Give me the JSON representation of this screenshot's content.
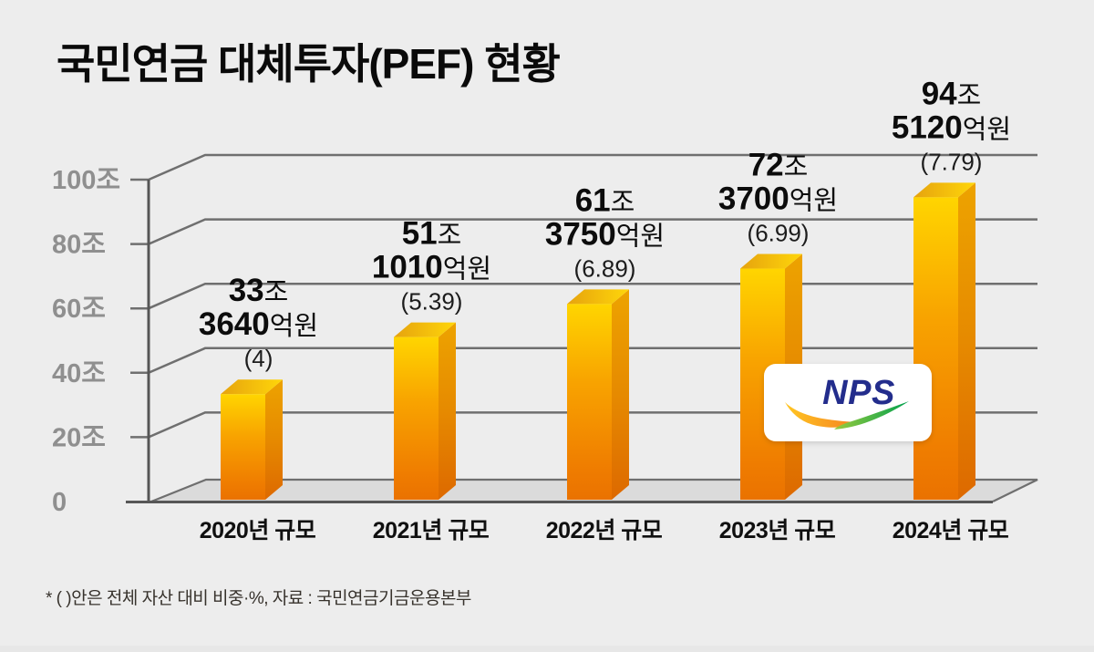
{
  "page": {
    "background": "#EDEDED"
  },
  "title": "국민연금 대체투자(PEF) 현황",
  "footnote": "* (  )안은 전체 자산 대비 비중·%, 자료 : 국민연금기금운용본부",
  "logo": {
    "text": "NPS",
    "navy": "#232D8C",
    "orange_start": "#FFC623",
    "orange_end": "#F57E20",
    "green_start": "#9BCB3D",
    "green_end": "#00A14E"
  },
  "chart_data": {
    "type": "bar",
    "style": "3d-bar",
    "title": "국민연금 대체투자(PEF) 현황",
    "unit": "조원 (trillion KRW)",
    "categories": [
      "2020년 규모",
      "2021년 규모",
      "2022년 규모",
      "2023년 규모",
      "2024년 규모"
    ],
    "values": [
      33.364,
      51.101,
      61.375,
      72.37,
      94.512
    ],
    "percent_of_assets": [
      4,
      5.39,
      6.89,
      6.99,
      7.79
    ],
    "value_labels": [
      {
        "line1_num": "33",
        "line1_suffix": "조",
        "line2_num": "3640",
        "line2_suffix": "억원",
        "paren": "(4)"
      },
      {
        "line1_num": "51",
        "line1_suffix": "조",
        "line2_num": "1010",
        "line2_suffix": "억원",
        "paren": "(5.39)"
      },
      {
        "line1_num": "61",
        "line1_suffix": "조",
        "line2_num": "3750",
        "line2_suffix": "억원",
        "paren": "(6.89)"
      },
      {
        "line1_num": "72",
        "line1_suffix": "조",
        "line2_num": "3700",
        "line2_suffix": "억원",
        "paren": "(6.99)"
      },
      {
        "line1_num": "94",
        "line1_suffix": "조",
        "line2_num": "5120",
        "line2_suffix": "억원",
        "paren": "(7.79)"
      }
    ],
    "y_ticks": [
      {
        "value": 100,
        "label": "100조"
      },
      {
        "value": 80,
        "label": "80조"
      },
      {
        "value": 60,
        "label": "60조"
      },
      {
        "value": 40,
        "label": "40조"
      },
      {
        "value": 20,
        "label": "20조"
      },
      {
        "value": 0,
        "label": "0"
      }
    ],
    "ylim": [
      0,
      100
    ],
    "grid": true,
    "legend": false,
    "colors": {
      "front_top": "#FFD500",
      "front_mid": "#F8A300",
      "front_bottom": "#EA7200",
      "side_top": "#EDA300",
      "side_bottom": "#DD6900",
      "top_left": "#E6A30E",
      "top_right": "#FFD60A",
      "gridline": "#6F6F6F",
      "axis": "#565656",
      "floor": "#DBDBDB"
    }
  }
}
